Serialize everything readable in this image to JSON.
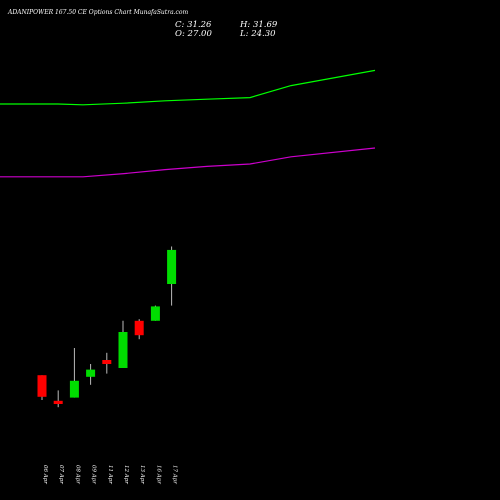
{
  "header": {
    "title": "ADANIPOWER 167.50 CE Options  Chart MunafaSutra.com",
    "close_label": "C: 31.26",
    "open_label": "O: 27.00",
    "high_label": "H: 31.69",
    "low_label": "L: 24.30"
  },
  "chart_data": {
    "type": "candlestick",
    "candles": [
      {
        "date": "06 Apr",
        "open": 15.6,
        "high": 15.6,
        "low": 12.5,
        "close": 12.9
      },
      {
        "date": "07 Apr",
        "open": 12.4,
        "high": 13.7,
        "low": 11.6,
        "close": 12.0
      },
      {
        "date": "08 Apr",
        "open": 12.8,
        "high": 19.0,
        "low": 12.8,
        "close": 14.9
      },
      {
        "date": "09 Apr",
        "open": 15.4,
        "high": 17.0,
        "low": 14.4,
        "close": 16.3
      },
      {
        "date": "11 Apr",
        "open": 17.5,
        "high": 18.4,
        "low": 15.8,
        "close": 17.0
      },
      {
        "date": "12 Apr",
        "open": 16.5,
        "high": 22.4,
        "low": 16.5,
        "close": 21.0
      },
      {
        "date": "13 Apr",
        "open": 22.4,
        "high": 22.6,
        "low": 20.1,
        "close": 20.6
      },
      {
        "date": "16 Apr",
        "open": 22.4,
        "high": 24.3,
        "low": 22.4,
        "close": 24.2
      },
      {
        "date": "17 Apr",
        "open": 27.0,
        "high": 31.69,
        "low": 24.3,
        "close": 31.26
      }
    ],
    "upper_band": [
      {
        "date": "05 Apr",
        "value": 49.5
      },
      {
        "date": "06 Apr",
        "value": 49.5
      },
      {
        "date": "07 Apr",
        "value": 49.5
      },
      {
        "date": "08 Apr",
        "value": 49.4
      },
      {
        "date": "09 Apr",
        "value": 49.6
      },
      {
        "date": "11 Apr",
        "value": 49.9
      },
      {
        "date": "12 Apr",
        "value": 50.1
      },
      {
        "date": "13 Apr",
        "value": 50.3
      },
      {
        "date": "16 Apr",
        "value": 51.8
      },
      {
        "date": "17 Apr",
        "value": 53.7
      }
    ],
    "lower_band": [
      {
        "date": "05 Apr",
        "value": 40.4
      },
      {
        "date": "06 Apr",
        "value": 40.4
      },
      {
        "date": "07 Apr",
        "value": 40.4
      },
      {
        "date": "08 Apr",
        "value": 40.4
      },
      {
        "date": "09 Apr",
        "value": 40.8
      },
      {
        "date": "11 Apr",
        "value": 41.3
      },
      {
        "date": "12 Apr",
        "value": 41.7
      },
      {
        "date": "13 Apr",
        "value": 42.0
      },
      {
        "date": "16 Apr",
        "value": 42.9
      },
      {
        "date": "17 Apr",
        "value": 44.0
      }
    ],
    "ylim": [
      0,
      60
    ],
    "colors": {
      "up": "#00dd00",
      "down": "#ff0000",
      "upper_band": "#00ff00",
      "lower_band": "#cc00cc",
      "background": "#000000",
      "text": "#ffffff"
    }
  }
}
